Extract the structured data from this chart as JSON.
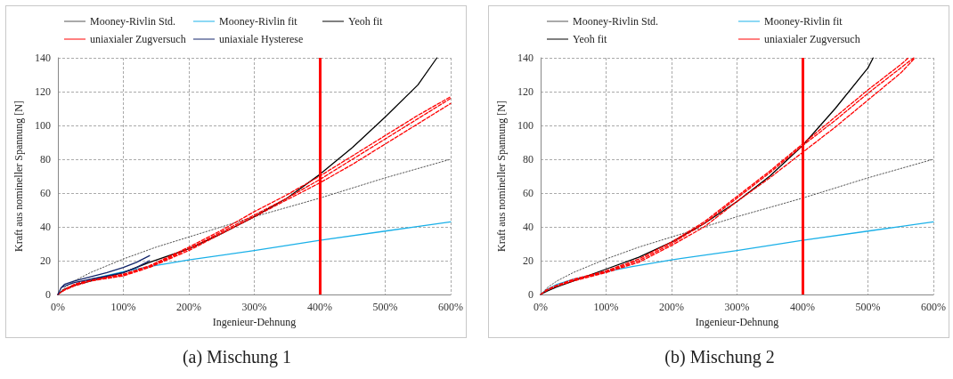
{
  "chart_data": [
    {
      "type": "line",
      "title": "(a) Mischung 1",
      "xlabel": "Ingenieur-Dehnung",
      "ylabel": "Kraft aus nomineller Spannung [N]",
      "xlim": [
        0,
        600
      ],
      "xticks": [
        {
          "value": 0,
          "label": "0%"
        },
        {
          "value": 100,
          "label": "100%"
        },
        {
          "value": 200,
          "label": "200%"
        },
        {
          "value": 300,
          "label": "300%"
        },
        {
          "value": 400,
          "label": "400%"
        },
        {
          "value": 500,
          "label": "500%"
        },
        {
          "value": 600,
          "label": "600%"
        }
      ],
      "ylim": [
        0,
        140
      ],
      "yticks": [
        0,
        20,
        40,
        60,
        80,
        100,
        120,
        140
      ],
      "grid": true,
      "legend": "top",
      "marker": "none",
      "ref_lines": [
        {
          "axis": "x",
          "value": 400,
          "color": "#ff0000",
          "line_style": "solid"
        }
      ],
      "series": [
        {
          "name": "Mooney-Rivlin Std.",
          "color": "#555555",
          "line_style": "dotted",
          "x": [
            0,
            10,
            25,
            50,
            100,
            150,
            200,
            300,
            400,
            500,
            600
          ],
          "values": [
            0,
            4,
            8,
            13,
            21,
            28,
            34,
            46,
            57,
            69,
            80
          ]
        },
        {
          "name": "Mooney-Rivlin fit",
          "color": "#1ab0e8",
          "line_style": "solid",
          "x": [
            50,
            100,
            140,
            200,
            300,
            400,
            500,
            600
          ],
          "values": [
            9,
            13.5,
            16.5,
            20.5,
            26,
            32,
            37.5,
            43
          ]
        },
        {
          "name": "Yeoh fit",
          "color": "#000000",
          "line_style": "solid",
          "x": [
            0,
            10,
            25,
            50,
            100,
            140,
            200,
            250,
            300,
            350,
            400,
            450,
            500,
            550,
            579
          ],
          "values": [
            0,
            3,
            5.5,
            8,
            13,
            19,
            27,
            36,
            46,
            57,
            71,
            87,
            105,
            124,
            140
          ]
        },
        {
          "name": "uniaxialer Zugversuch",
          "color": "#ff0000",
          "line_style": "dashed",
          "x": [
            0,
            10,
            25,
            50,
            100,
            140,
            200,
            250,
            300,
            350,
            400,
            450,
            500,
            550,
            600,
            null,
            0,
            10,
            25,
            50,
            100,
            140,
            200,
            250,
            300,
            350,
            400,
            450,
            500,
            550,
            600,
            null,
            0,
            10,
            25,
            50,
            100,
            140,
            200,
            250,
            300,
            350,
            400,
            450,
            500,
            550,
            600
          ],
          "values": [
            0,
            3,
            6,
            9,
            12,
            17,
            28,
            38,
            49,
            59,
            70,
            82,
            94,
            106,
            117,
            null,
            0,
            3,
            5.5,
            8.5,
            11.5,
            16.5,
            27,
            37,
            47,
            57,
            68,
            80,
            92,
            104,
            116,
            null,
            0,
            2.5,
            5,
            8,
            11,
            16,
            26,
            36,
            46,
            56,
            66,
            77,
            89,
            101,
            113
          ]
        },
        {
          "name": "uniaxiale Hysterese",
          "color": "#12246a",
          "line_style": "solid",
          "x": [
            0,
            5,
            10,
            25,
            50,
            75,
            100,
            120,
            140,
            null,
            140,
            120,
            100,
            75,
            50,
            25,
            10,
            5
          ],
          "values": [
            0,
            4,
            6,
            8,
            10.5,
            13,
            16,
            19,
            23,
            null,
            20,
            16,
            13,
            11,
            9,
            7,
            5,
            4
          ]
        }
      ]
    },
    {
      "type": "line",
      "title": "(b) Mischung 2",
      "xlabel": "Ingenieur-Dehnung",
      "ylabel": "Kraft aus nomineller Spannung [N]",
      "xlim": [
        0,
        600
      ],
      "xticks": [
        {
          "value": 0,
          "label": "0%"
        },
        {
          "value": 100,
          "label": "100%"
        },
        {
          "value": 200,
          "label": "200%"
        },
        {
          "value": 300,
          "label": "300%"
        },
        {
          "value": 400,
          "label": "400%"
        },
        {
          "value": 500,
          "label": "500%"
        },
        {
          "value": 600,
          "label": "600%"
        }
      ],
      "ylim": [
        0,
        140
      ],
      "yticks": [
        0,
        20,
        40,
        60,
        80,
        100,
        120,
        140
      ],
      "grid": true,
      "legend": "top",
      "marker": "none",
      "ref_lines": [
        {
          "axis": "x",
          "value": 400,
          "color": "#ff0000",
          "line_style": "solid"
        }
      ],
      "series": [
        {
          "name": "Mooney-Rivlin Std.",
          "color": "#555555",
          "line_style": "dotted",
          "x": [
            0,
            10,
            25,
            50,
            100,
            150,
            200,
            300,
            400,
            500,
            600
          ],
          "values": [
            0,
            4,
            8,
            13,
            21,
            28,
            34,
            46,
            57,
            69,
            80
          ]
        },
        {
          "name": "Mooney-Rivlin fit",
          "color": "#1ab0e8",
          "line_style": "solid",
          "x": [
            0,
            10,
            25,
            50,
            100,
            140,
            200,
            300,
            400,
            500,
            600
          ],
          "values": [
            0,
            3,
            6,
            9,
            13.5,
            16.5,
            20.5,
            26,
            32,
            37.5,
            43
          ]
        },
        {
          "name": "Yeoh fit",
          "color": "#000000",
          "line_style": "solid",
          "x": [
            0,
            10,
            25,
            50,
            100,
            150,
            200,
            250,
            300,
            350,
            400,
            450,
            500,
            508
          ],
          "values": [
            0,
            2,
            4.5,
            8,
            15,
            22,
            31,
            42,
            55,
            70,
            88,
            110,
            134,
            140
          ]
        },
        {
          "name": "uniaxialer Zugversuch",
          "color": "#ff0000",
          "line_style": "dashed",
          "x": [
            0,
            10,
            25,
            50,
            100,
            150,
            200,
            250,
            300,
            350,
            400,
            450,
            500,
            550,
            562,
            null,
            0,
            10,
            25,
            50,
            100,
            150,
            200,
            250,
            300,
            350,
            400,
            450,
            500,
            550,
            570,
            null,
            0,
            10,
            25,
            50,
            100,
            150,
            200,
            250,
            300,
            350,
            400,
            450,
            500,
            550,
            572
          ],
          "values": [
            0,
            3,
            5.5,
            9,
            14,
            21,
            31,
            43,
            58,
            73,
            89,
            105,
            121,
            136,
            140,
            null,
            0,
            3,
            5.5,
            8.5,
            13.5,
            20,
            30,
            42,
            57,
            72,
            88,
            103,
            119,
            134,
            140,
            null,
            0,
            2.5,
            5,
            8,
            13,
            19,
            29,
            40,
            55,
            69,
            84,
            99,
            115,
            131,
            140
          ]
        }
      ]
    }
  ]
}
